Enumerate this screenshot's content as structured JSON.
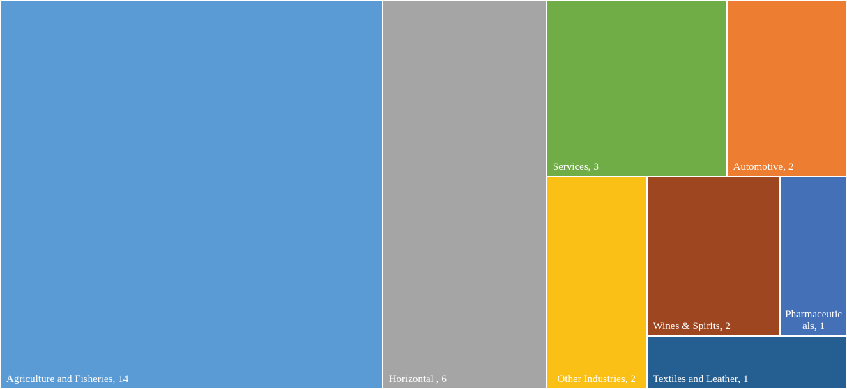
{
  "chart_data": {
    "type": "treemap",
    "categories": [
      "Agriculture and Fisheries,",
      "Horizontal ,",
      "Services,",
      "Automotive,",
      "Other Industries,",
      "Wines & Spirits,",
      "Pharmaceuticals,",
      "Textiles and Leather,"
    ],
    "values": [
      14,
      6,
      3,
      2,
      2,
      2,
      1,
      1
    ],
    "colors": [
      "#5b9bd5",
      "#a5a5a5",
      "#70ad47",
      "#ed7d31",
      "#fbc015",
      "#9e4620",
      "#4470b8",
      "#255e91"
    ]
  }
}
